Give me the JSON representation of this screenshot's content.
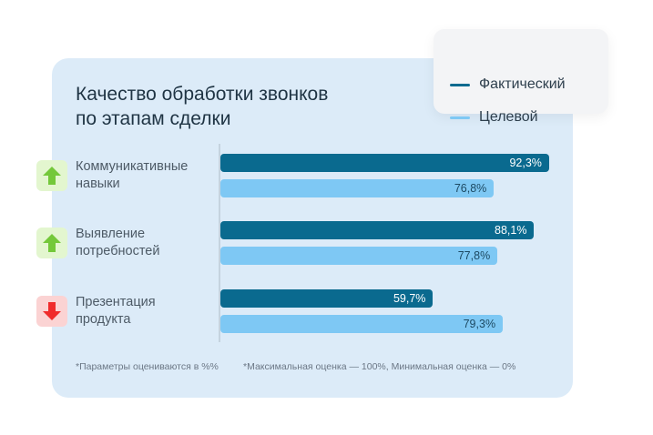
{
  "chart_data": {
    "type": "bar",
    "orientation": "horizontal",
    "title": [
      "Качество обработки звонков",
      "по этапам сделки"
    ],
    "categories": [
      {
        "lines": [
          "Коммуникативные",
          "навыки"
        ],
        "trend": "up",
        "trend_icon": "arrow-up-icon"
      },
      {
        "lines": [
          "Выявление",
          "потребностей"
        ],
        "trend": "up",
        "trend_icon": "arrow-up-icon"
      },
      {
        "lines": [
          "Презентация",
          "продукта"
        ],
        "trend": "down",
        "trend_icon": "arrow-down-icon"
      }
    ],
    "series": [
      {
        "name": "Фактический",
        "color": "#0a6a8f",
        "label_color": "#ffffff",
        "values": [
          92.3,
          88.1,
          59.7
        ],
        "labels": [
          "92,3%",
          "88,1%",
          "59,7%"
        ]
      },
      {
        "name": "Целевой",
        "color": "#7ec8f4",
        "label_color": "#1d4a63",
        "values": [
          76.8,
          77.8,
          79.3
        ],
        "labels": [
          "76,8%",
          "77,8%",
          "79,3%"
        ]
      }
    ],
    "xlim": [
      0,
      100
    ],
    "grid": false,
    "legend_position": "top-right",
    "footnotes": [
      "*Параметры оцениваются в %%",
      "*Максимальная оценка — 100%, Минимальная оценка — 0%"
    ],
    "trend_colors": {
      "up": "#74c83a",
      "up_bg": "#e3f6cf",
      "down": "#f02b2b",
      "down_bg": "#fbd3d3"
    }
  }
}
